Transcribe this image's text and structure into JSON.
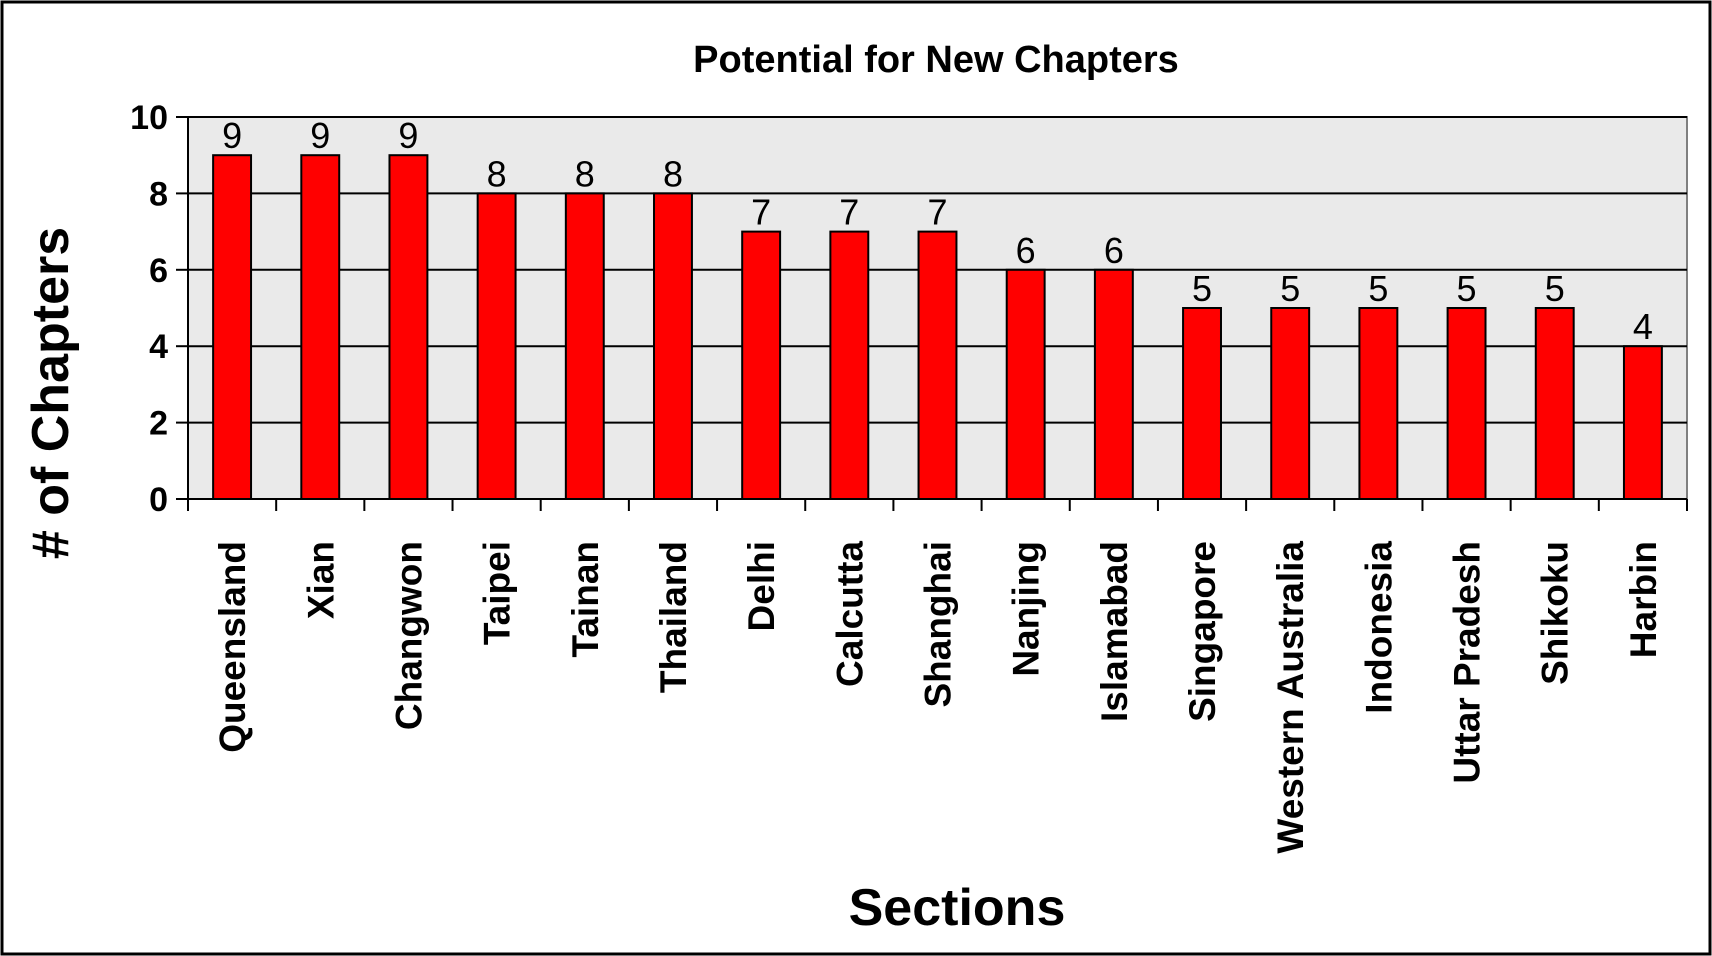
{
  "chart_data": {
    "type": "bar",
    "title": "Potential for New Chapters",
    "xlabel": "Sections",
    "ylabel": "# of Chapters",
    "categories": [
      "Queensland",
      "Xian",
      "Changwon",
      "Taipei",
      "Tainan",
      "Thailand",
      "Delhi",
      "Calcutta",
      "Shanghai",
      "Nanjing",
      "Islamabad",
      "Singapore",
      "Western Australia",
      "Indonesia",
      "Uttar Pradesh",
      "Shikoku",
      "Harbin"
    ],
    "values": [
      9,
      9,
      9,
      8,
      8,
      8,
      7,
      7,
      7,
      6,
      6,
      5,
      5,
      5,
      5,
      5,
      4
    ],
    "ylim": [
      0,
      10
    ],
    "yticks": [
      0,
      2,
      4,
      6,
      8,
      10
    ],
    "grid": true,
    "data_labels": true,
    "legend": "none",
    "colors": {
      "bar": "#ff0000",
      "bar_outline": "#000000",
      "plot_background": "#eaeaea",
      "gridline": "#000000",
      "frame": "#000000"
    }
  }
}
